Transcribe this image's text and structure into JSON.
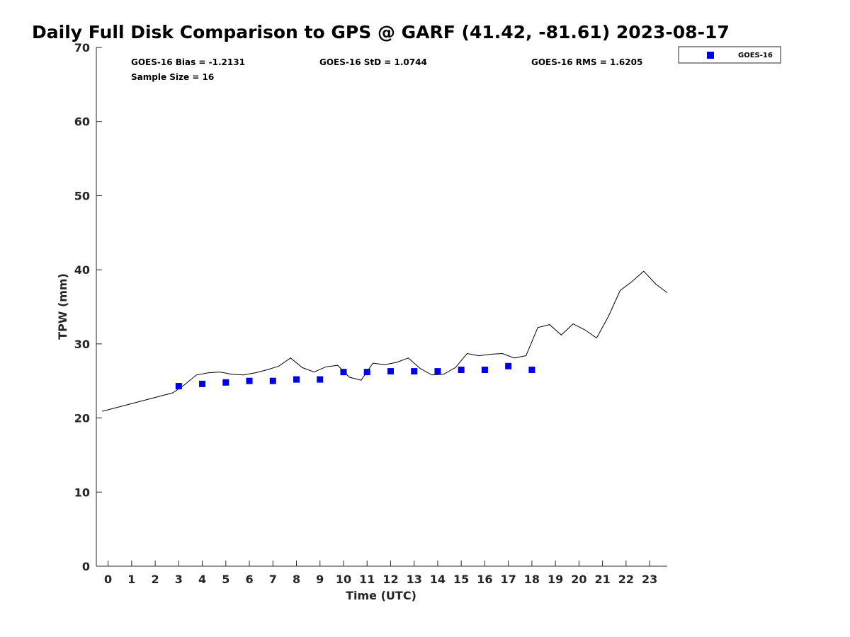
{
  "chart_data": {
    "type": "line",
    "title": "Daily Full Disk Comparison to GPS @ GARF (41.42, -81.61) 2023-08-17",
    "xlabel": "Time (UTC)",
    "ylabel": "TPW (mm)",
    "xlim": [
      -0.5,
      23.75
    ],
    "ylim": [
      0,
      70
    ],
    "x_ticks": [
      0,
      1,
      2,
      3,
      4,
      5,
      6,
      7,
      8,
      9,
      10,
      11,
      12,
      13,
      14,
      15,
      16,
      17,
      18,
      19,
      20,
      21,
      22,
      23
    ],
    "y_ticks": [
      0,
      10,
      20,
      30,
      40,
      50,
      60,
      70
    ],
    "grid": false,
    "legend_position": "top-right",
    "stats": {
      "bias": "GOES-16 Bias = -1.2131",
      "std": "GOES-16 StD = 1.0744",
      "rms": "GOES-16 RMS = 1.6205",
      "sample": "Sample Size = 16"
    },
    "series": [
      {
        "type": "line",
        "color": "#000000",
        "x": [
          -0.25,
          2.75,
          3.25,
          3.75,
          4.25,
          4.75,
          5.25,
          5.75,
          6.25,
          6.75,
          7.25,
          7.75,
          8.25,
          8.75,
          9.25,
          9.75,
          10.25,
          10.75,
          11.25,
          11.75,
          12.25,
          12.75,
          13.25,
          13.75,
          14.25,
          14.75,
          15.25,
          15.75,
          16.25,
          16.75,
          17.25,
          17.75,
          18.25,
          18.75,
          19.25,
          19.75,
          20.25,
          20.75,
          21.25,
          21.75,
          22.25,
          22.75,
          23.25,
          23.75
        ],
        "y": [
          20.9,
          23.4,
          24.5,
          25.8,
          26.1,
          26.2,
          25.9,
          25.8,
          26.1,
          26.5,
          27.0,
          28.1,
          26.8,
          26.2,
          26.9,
          27.1,
          25.5,
          25.1,
          27.4,
          27.2,
          27.5,
          28.1,
          26.7,
          25.8,
          25.9,
          26.8,
          28.7,
          28.4,
          28.6,
          28.7,
          28.1,
          28.4,
          32.2,
          32.6,
          31.2,
          32.7,
          31.9,
          30.8,
          33.7,
          37.2,
          38.4,
          39.8,
          38.1,
          36.9
        ]
      },
      {
        "type": "scatter",
        "name": "GOES-16",
        "color": "#0000e6",
        "marker": "square",
        "x": [
          3,
          4,
          5,
          6,
          7,
          8,
          9,
          10,
          11,
          12,
          13,
          14,
          15,
          16,
          17,
          18
        ],
        "y": [
          24.3,
          24.6,
          24.8,
          25.0,
          25.0,
          25.2,
          25.2,
          26.2,
          26.2,
          26.3,
          26.3,
          26.3,
          26.5,
          26.5,
          27.0,
          26.5
        ]
      }
    ]
  }
}
